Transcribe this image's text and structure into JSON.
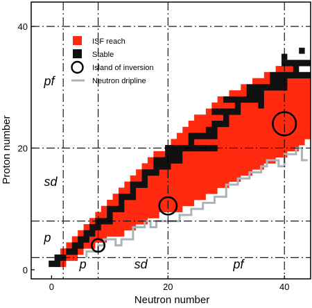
{
  "chart_data": {
    "type": "heatmap",
    "xlabel": "Neutron number",
    "ylabel": "Proton number",
    "xlim": [
      -3.5,
      44.5
    ],
    "ylim": [
      -1.5,
      44
    ],
    "xticks": [
      0,
      20,
      40
    ],
    "yticks": [
      0,
      20,
      40
    ],
    "legend": {
      "placement": "top-left",
      "entries": [
        {
          "name": "ISF reach",
          "color": "#ff2a0f",
          "marker": "square"
        },
        {
          "name": "Stable",
          "color": "#111111",
          "marker": "square"
        },
        {
          "name": "Island of inversion",
          "color": "#000000",
          "marker": "circle"
        },
        {
          "name": "Neutron dripline",
          "color": "#a9b4b8",
          "marker": "line"
        }
      ]
    },
    "magic_numbers": [
      2,
      8,
      20,
      40
    ],
    "region_labels": [
      {
        "text": "pf",
        "x": -1.3,
        "y": 30.3
      },
      {
        "text": "sd",
        "x": -1.3,
        "y": 13.8
      },
      {
        "text": "p",
        "x": -1.3,
        "y": 4.6
      },
      {
        "text": "p",
        "x": 4.8,
        "y": 0.2
      },
      {
        "text": "sd",
        "x": 14.2,
        "y": 0.2
      },
      {
        "text": "pf",
        "x": 31.2,
        "y": 0.2
      }
    ],
    "isf_reach_rows": [
      {
        "Z": 1,
        "N_min": 1,
        "N_max": 2
      },
      {
        "Z": 2,
        "N_min": 1,
        "N_max": 4
      },
      {
        "Z": 3,
        "N_min": 2,
        "N_max": 5
      },
      {
        "Z": 4,
        "N_min": 3,
        "N_max": 7
      },
      {
        "Z": 5,
        "N_min": 4,
        "N_max": 9
      },
      {
        "Z": 6,
        "N_min": 5,
        "N_max": 12
      },
      {
        "Z": 7,
        "N_min": 6,
        "N_max": 14
      },
      {
        "Z": 8,
        "N_min": 7,
        "N_max": 16
      },
      {
        "Z": 9,
        "N_min": 8,
        "N_max": 18
      },
      {
        "Z": 10,
        "N_min": 9,
        "N_max": 22
      },
      {
        "Z": 11,
        "N_min": 10,
        "N_max": 24
      },
      {
        "Z": 12,
        "N_min": 11,
        "N_max": 26
      },
      {
        "Z": 13,
        "N_min": 12,
        "N_max": 28
      },
      {
        "Z": 14,
        "N_min": 13,
        "N_max": 30
      },
      {
        "Z": 15,
        "N_min": 14,
        "N_max": 32
      },
      {
        "Z": 16,
        "N_min": 15,
        "N_max": 34
      },
      {
        "Z": 17,
        "N_min": 16,
        "N_max": 36
      },
      {
        "Z": 18,
        "N_min": 17,
        "N_max": 38
      },
      {
        "Z": 19,
        "N_min": 18,
        "N_max": 40
      },
      {
        "Z": 20,
        "N_min": 20,
        "N_max": 42
      },
      {
        "Z": 21,
        "N_min": 21,
        "N_max": 43
      },
      {
        "Z": 22,
        "N_min": 22,
        "N_max": 44
      },
      {
        "Z": 23,
        "N_min": 23,
        "N_max": 44
      },
      {
        "Z": 24,
        "N_min": 24,
        "N_max": 44
      },
      {
        "Z": 25,
        "N_min": 25,
        "N_max": 44
      },
      {
        "Z": 26,
        "N_min": 27,
        "N_max": 44
      },
      {
        "Z": 27,
        "N_min": 28,
        "N_max": 44
      },
      {
        "Z": 28,
        "N_min": 29,
        "N_max": 44
      },
      {
        "Z": 29,
        "N_min": 31,
        "N_max": 44
      },
      {
        "Z": 30,
        "N_min": 33,
        "N_max": 44
      },
      {
        "Z": 31,
        "N_min": 35,
        "N_max": 44
      },
      {
        "Z": 32,
        "N_min": 37,
        "N_max": 44
      },
      {
        "Z": 33,
        "N_min": 39,
        "N_max": 42
      }
    ],
    "stable_band": [
      {
        "Z": 1,
        "N_min": 0,
        "N_max": 1
      },
      {
        "Z": 2,
        "N_min": 1,
        "N_max": 2
      },
      {
        "Z": 3,
        "N_min": 3,
        "N_max": 4
      },
      {
        "Z": 4,
        "N_min": 4,
        "N_max": 5
      },
      {
        "Z": 5,
        "N_min": 5,
        "N_max": 6
      },
      {
        "Z": 6,
        "N_min": 6,
        "N_max": 7
      },
      {
        "Z": 7,
        "N_min": 7,
        "N_max": 8
      },
      {
        "Z": 8,
        "N_min": 8,
        "N_max": 10
      },
      {
        "Z": 9,
        "N_min": 10,
        "N_max": 10
      },
      {
        "Z": 10,
        "N_min": 10,
        "N_max": 12
      },
      {
        "Z": 11,
        "N_min": 12,
        "N_max": 12
      },
      {
        "Z": 12,
        "N_min": 12,
        "N_max": 14
      },
      {
        "Z": 13,
        "N_min": 14,
        "N_max": 14
      },
      {
        "Z": 14,
        "N_min": 14,
        "N_max": 16
      },
      {
        "Z": 15,
        "N_min": 16,
        "N_max": 16
      },
      {
        "Z": 16,
        "N_min": 16,
        "N_max": 18
      },
      {
        "Z": 17,
        "N_min": 18,
        "N_max": 20
      },
      {
        "Z": 18,
        "N_min": 18,
        "N_max": 22
      },
      {
        "Z": 19,
        "N_min": 20,
        "N_max": 22
      },
      {
        "Z": 20,
        "N_min": 20,
        "N_max": 28
      },
      {
        "Z": 21,
        "N_min": 24,
        "N_max": 24
      },
      {
        "Z": 22,
        "N_min": 24,
        "N_max": 28
      },
      {
        "Z": 23,
        "N_min": 27,
        "N_max": 28
      },
      {
        "Z": 24,
        "N_min": 28,
        "N_max": 30
      },
      {
        "Z": 25,
        "N_min": 30,
        "N_max": 30
      },
      {
        "Z": 26,
        "N_min": 28,
        "N_max": 32
      },
      {
        "Z": 27,
        "N_min": 32,
        "N_max": 32
      },
      {
        "Z": 28,
        "N_min": 30,
        "N_max": 36
      },
      {
        "Z": 29,
        "N_min": 34,
        "N_max": 36
      },
      {
        "Z": 30,
        "N_min": 34,
        "N_max": 40
      },
      {
        "Z": 31,
        "N_min": 38,
        "N_max": 40
      },
      {
        "Z": 32,
        "N_min": 38,
        "N_max": 44
      },
      {
        "Z": 33,
        "N_min": 42,
        "N_max": 42
      },
      {
        "Z": 34,
        "N_min": 40,
        "N_max": 44
      }
    ],
    "stable_extra": [
      {
        "N": 36,
        "Z": 27
      },
      {
        "N": 40,
        "Z": 35
      },
      {
        "N": 43,
        "Z": 36
      },
      {
        "N": 26,
        "Z": 20
      },
      {
        "N": 28,
        "Z": 20
      },
      {
        "N": 20,
        "Z": 17
      }
    ],
    "islands_of_inversion": [
      {
        "N": 8,
        "Z": 4,
        "radius": 1.1
      },
      {
        "N": 20,
        "Z": 10.5,
        "radius": 1.5
      },
      {
        "N": 40,
        "Z": 24,
        "radius": 2
      }
    ],
    "neutron_dripline": [
      [
        6,
        2
      ],
      [
        6,
        3
      ],
      [
        8,
        3
      ],
      [
        8,
        4
      ],
      [
        9,
        4
      ],
      [
        9,
        5
      ],
      [
        11,
        5
      ],
      [
        11,
        4
      ],
      [
        12,
        4
      ],
      [
        12,
        5
      ],
      [
        14,
        5
      ],
      [
        14,
        7
      ],
      [
        16,
        7
      ],
      [
        16,
        8
      ],
      [
        17,
        8
      ],
      [
        17,
        7
      ],
      [
        18,
        7
      ],
      [
        18,
        8
      ],
      [
        22,
        8
      ],
      [
        22,
        9
      ],
      [
        24,
        9
      ],
      [
        24,
        10
      ],
      [
        26,
        10
      ],
      [
        26,
        11
      ],
      [
        28,
        11
      ],
      [
        28,
        12
      ],
      [
        30,
        12
      ],
      [
        30,
        14
      ],
      [
        32,
        14
      ],
      [
        32,
        15
      ],
      [
        34,
        15
      ],
      [
        34,
        16
      ],
      [
        36,
        16
      ],
      [
        36,
        17
      ],
      [
        37,
        17
      ],
      [
        37,
        18
      ],
      [
        39,
        18
      ],
      [
        39,
        17
      ],
      [
        40,
        17
      ],
      [
        40,
        19
      ],
      [
        42,
        19
      ],
      [
        42,
        20
      ],
      [
        43,
        20
      ],
      [
        43,
        18
      ],
      [
        44,
        18
      ]
    ]
  }
}
